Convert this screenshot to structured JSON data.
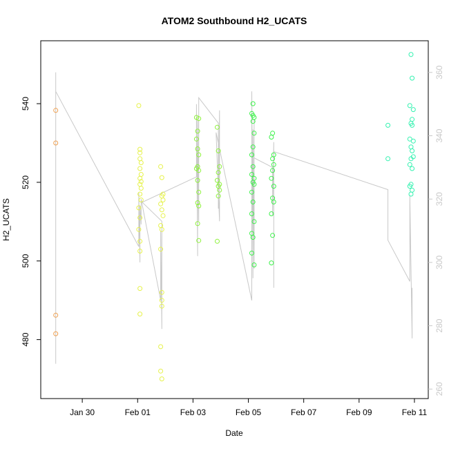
{
  "chart_data": {
    "type": "scatter",
    "title": "ATOM2 Southbound H2_UCATS",
    "xlabel": "Date",
    "ylabel": "H2_UCATS",
    "x_domain": [
      "2017-01-28 12:00",
      "2017-02-11 12:00"
    ],
    "x_ticks": [
      {
        "date": "2017-01-30",
        "label": "Jan 30"
      },
      {
        "date": "2017-02-01",
        "label": "Feb 01"
      },
      {
        "date": "2017-02-03",
        "label": "Feb 03"
      },
      {
        "date": "2017-02-05",
        "label": "Feb 05"
      },
      {
        "date": "2017-02-07",
        "label": "Feb 07"
      },
      {
        "date": "2017-02-09",
        "label": "Feb 09"
      },
      {
        "date": "2017-02-11",
        "label": "Feb 11"
      }
    ],
    "ylim": [
      465,
      556
    ],
    "y_ticks": [
      480,
      500,
      520,
      540
    ],
    "y2lim": [
      257,
      370
    ],
    "y2_ticks": [
      260,
      280,
      300,
      320,
      340,
      360
    ],
    "y2_color": "#c8c8c8",
    "grid": false,
    "series": [
      {
        "color": "#f0a050",
        "points": [
          [
            "2017-01-29 01:00",
            538.3
          ],
          [
            "2017-01-29 01:00",
            530.0
          ],
          [
            "2017-01-29 01:00",
            486.2
          ],
          [
            "2017-01-29 01:00",
            481.5
          ]
        ]
      },
      {
        "color": "#e6f24a",
        "points": [
          [
            "2017-02-01 01:00",
            539.5
          ],
          [
            "2017-02-01 02:00",
            528.4
          ],
          [
            "2017-02-01 02:00",
            527.5
          ],
          [
            "2017-02-01 02:00",
            526.0
          ],
          [
            "2017-02-01 03:00",
            525.0
          ],
          [
            "2017-02-01 02:00",
            523.5
          ],
          [
            "2017-02-01 03:00",
            522.0
          ],
          [
            "2017-02-01 02:00",
            521.0
          ],
          [
            "2017-02-01 03:00",
            520.2
          ],
          [
            "2017-02-01 02:00",
            519.5
          ],
          [
            "2017-02-01 03:00",
            518.5
          ],
          [
            "2017-02-01 02:00",
            517.0
          ],
          [
            "2017-02-01 03:00",
            515.5
          ],
          [
            "2017-02-01 01:00",
            513.5
          ],
          [
            "2017-02-01 02:00",
            511.0
          ],
          [
            "2017-02-01 01:00",
            508.0
          ],
          [
            "2017-02-01 02:00",
            505.0
          ],
          [
            "2017-02-01 02:00",
            502.5
          ],
          [
            "2017-02-01 02:00",
            493.0
          ],
          [
            "2017-02-01 02:00",
            486.5
          ],
          [
            "2017-02-01 20:00",
            524.0
          ],
          [
            "2017-02-01 21:00",
            521.2
          ],
          [
            "2017-02-01 22:00",
            517.0
          ],
          [
            "2017-02-01 21:00",
            516.5
          ],
          [
            "2017-02-01 22:00",
            515.5
          ],
          [
            "2017-02-01 20:00",
            514.5
          ],
          [
            "2017-02-01 21:00",
            513.0
          ],
          [
            "2017-02-01 22:00",
            511.5
          ],
          [
            "2017-02-01 20:00",
            509.0
          ],
          [
            "2017-02-01 21:00",
            508.0
          ],
          [
            "2017-02-01 20:00",
            503.0
          ],
          [
            "2017-02-01 21:00",
            492.0
          ],
          [
            "2017-02-01 21:00",
            490.0
          ],
          [
            "2017-02-01 21:00",
            488.5
          ],
          [
            "2017-02-01 20:00",
            478.2
          ],
          [
            "2017-02-01 20:00",
            472.0
          ],
          [
            "2017-02-01 21:00",
            470.0
          ]
        ]
      },
      {
        "color": "#8ef23c",
        "points": [
          [
            "2017-02-03 03:00",
            536.5
          ],
          [
            "2017-02-03 05:00",
            536.2
          ],
          [
            "2017-02-03 04:00",
            533.0
          ],
          [
            "2017-02-03 03:00",
            531.0
          ],
          [
            "2017-02-03 04:00",
            528.5
          ],
          [
            "2017-02-03 05:00",
            527.0
          ],
          [
            "2017-02-03 04:00",
            524.0
          ],
          [
            "2017-02-03 03:00",
            523.5
          ],
          [
            "2017-02-03 05:00",
            523.0
          ],
          [
            "2017-02-03 04:00",
            520.5
          ],
          [
            "2017-02-03 05:00",
            517.5
          ],
          [
            "2017-02-03 04:00",
            514.8
          ],
          [
            "2017-02-03 05:00",
            514.0
          ],
          [
            "2017-02-03 04:00",
            509.5
          ],
          [
            "2017-02-03 05:00",
            505.2
          ],
          [
            "2017-02-03 21:00",
            534.0
          ],
          [
            "2017-02-03 22:00",
            528.0
          ],
          [
            "2017-02-03 23:00",
            524.0
          ],
          [
            "2017-02-03 22:00",
            522.5
          ],
          [
            "2017-02-03 21:00",
            520.5
          ],
          [
            "2017-02-03 23:00",
            519.5
          ],
          [
            "2017-02-03 22:00",
            519.0
          ],
          [
            "2017-02-03 23:00",
            518.0
          ],
          [
            "2017-02-03 22:00",
            516.5
          ],
          [
            "2017-02-03 21:00",
            505.0
          ]
        ]
      },
      {
        "color": "#3cf24a",
        "points": [
          [
            "2017-02-05 03:00",
            537.5
          ],
          [
            "2017-02-05 04:00",
            537.0
          ],
          [
            "2017-02-05 05:00",
            536.5
          ],
          [
            "2017-02-05 04:00",
            535.5
          ],
          [
            "2017-02-05 05:00",
            532.5
          ],
          [
            "2017-02-05 04:00",
            529.0
          ],
          [
            "2017-02-05 03:00",
            527.0
          ],
          [
            "2017-02-05 04:00",
            524.0
          ],
          [
            "2017-02-05 03:00",
            522.0
          ],
          [
            "2017-02-05 05:00",
            521.0
          ],
          [
            "2017-02-05 04:00",
            520.0
          ],
          [
            "2017-02-05 05:00",
            519.5
          ],
          [
            "2017-02-05 03:00",
            517.5
          ],
          [
            "2017-02-05 04:00",
            515.0
          ],
          [
            "2017-02-05 03:00",
            512.0
          ],
          [
            "2017-02-05 05:00",
            510.0
          ],
          [
            "2017-02-05 03:00",
            507.0
          ],
          [
            "2017-02-05 04:00",
            506.0
          ],
          [
            "2017-02-05 03:00",
            502.0
          ],
          [
            "2017-02-05 05:00",
            499.0
          ],
          [
            "2017-02-05 04:00",
            540.0
          ],
          [
            "2017-02-05 21:00",
            532.5
          ],
          [
            "2017-02-05 20:00",
            531.5
          ],
          [
            "2017-02-05 22:00",
            527.0
          ],
          [
            "2017-02-05 21:00",
            526.0
          ],
          [
            "2017-02-05 22:00",
            524.5
          ],
          [
            "2017-02-05 21:00",
            523.0
          ],
          [
            "2017-02-05 20:00",
            521.0
          ],
          [
            "2017-02-05 22:00",
            519.0
          ],
          [
            "2017-02-05 21:00",
            516.0
          ],
          [
            "2017-02-05 22:00",
            515.0
          ],
          [
            "2017-02-05 20:00",
            512.0
          ],
          [
            "2017-02-05 21:00",
            506.5
          ],
          [
            "2017-02-05 20:00",
            499.5
          ]
        ]
      },
      {
        "color": "#33f2b0",
        "points": [
          [
            "2017-02-10 01:00",
            534.5
          ],
          [
            "2017-02-10 01:00",
            526.0
          ],
          [
            "2017-02-10 21:00",
            552.5
          ],
          [
            "2017-02-10 22:00",
            546.5
          ],
          [
            "2017-02-10 20:00",
            539.5
          ],
          [
            "2017-02-10 23:00",
            538.5
          ],
          [
            "2017-02-10 22:00",
            536.0
          ],
          [
            "2017-02-10 21:00",
            535.0
          ],
          [
            "2017-02-10 22:00",
            534.5
          ],
          [
            "2017-02-10 20:00",
            531.0
          ],
          [
            "2017-02-10 23:00",
            530.5
          ],
          [
            "2017-02-10 21:00",
            529.0
          ],
          [
            "2017-02-10 22:00",
            528.0
          ],
          [
            "2017-02-10 23:00",
            526.5
          ],
          [
            "2017-02-10 21:00",
            526.0
          ],
          [
            "2017-02-10 20:00",
            524.5
          ],
          [
            "2017-02-10 22:00",
            523.5
          ],
          [
            "2017-02-10 21:00",
            519.5
          ],
          [
            "2017-02-10 20:00",
            519.0
          ],
          [
            "2017-02-10 22:00",
            518.0
          ],
          [
            "2017-02-10 21:00",
            517.0
          ]
        ]
      }
    ],
    "line_series": {
      "color": "#c8c8c8",
      "axis": "right",
      "points": [
        [
          "2017-01-29 01:00",
          268
        ],
        [
          "2017-01-29 01:00",
          360
        ],
        [
          "2017-01-29 01:00",
          354
        ],
        [
          "2017-02-01 01:00",
          305
        ],
        [
          "2017-02-01 01:00",
          322
        ],
        [
          "2017-02-01 02:00",
          300
        ],
        [
          "2017-02-01 02:00",
          318
        ],
        [
          "2017-02-01 03:00",
          312
        ],
        [
          "2017-02-01 03:00",
          320
        ],
        [
          "2017-02-01 20:00",
          288
        ],
        [
          "2017-02-01 20:00",
          310
        ],
        [
          "2017-02-01 21:00",
          279
        ],
        [
          "2017-02-01 21:00",
          313
        ],
        [
          "2017-02-01 04:00",
          319
        ],
        [
          "2017-02-03 03:00",
          327
        ],
        [
          "2017-02-03 03:00",
          350
        ],
        [
          "2017-02-03 04:00",
          302
        ],
        [
          "2017-02-03 04:00",
          345
        ],
        [
          "2017-02-03 05:00",
          313
        ],
        [
          "2017-02-03 05:00",
          352
        ],
        [
          "2017-02-03 22:00",
          344
        ],
        [
          "2017-02-03 22:00",
          317
        ],
        [
          "2017-02-03 23:00",
          348
        ],
        [
          "2017-02-03 23:00",
          313
        ],
        [
          "2017-02-03 20:00",
          341
        ],
        [
          "2017-02-05 03:00",
          288
        ],
        [
          "2017-02-05 03:00",
          354
        ],
        [
          "2017-02-05 04:00",
          295
        ],
        [
          "2017-02-05 04:00",
          342
        ],
        [
          "2017-02-05 05:00",
          298
        ],
        [
          "2017-02-05 05:00",
          345
        ],
        [
          "2017-02-05 05:00",
          333
        ],
        [
          "2017-02-05 21:00",
          330
        ],
        [
          "2017-02-05 21:00",
          315
        ],
        [
          "2017-02-05 22:00",
          338
        ],
        [
          "2017-02-05 22:00",
          292
        ],
        [
          "2017-02-05 22:00",
          335
        ],
        [
          "2017-02-10 01:00",
          323
        ],
        [
          "2017-02-10 01:00",
          307
        ],
        [
          "2017-02-10 20:00",
          294
        ],
        [
          "2017-02-10 20:00",
          321
        ],
        [
          "2017-02-10 22:00",
          276
        ],
        [
          "2017-02-10 22:00",
          292
        ]
      ]
    }
  }
}
